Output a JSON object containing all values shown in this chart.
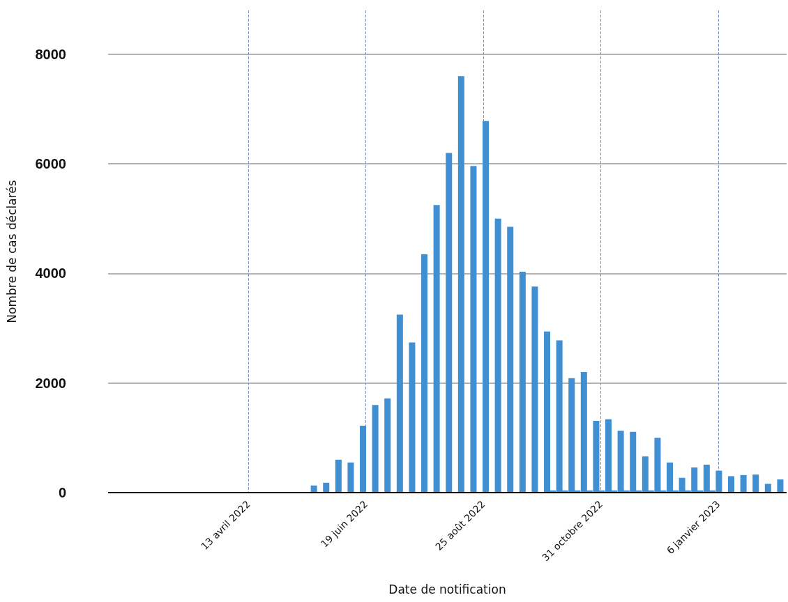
{
  "chart_data": {
    "type": "bar",
    "xlabel": "Date de notification",
    "ylabel": "Nombre de cas déclarés",
    "x": [
      "2022-05-22",
      "2022-05-29",
      "2022-06-05",
      "2022-06-12",
      "2022-06-19",
      "2022-06-26",
      "2022-07-03",
      "2022-07-10",
      "2022-07-17",
      "2022-07-24",
      "2022-07-31",
      "2022-08-07",
      "2022-08-14",
      "2022-08-21",
      "2022-08-28",
      "2022-09-04",
      "2022-09-11",
      "2022-09-18",
      "2022-09-25",
      "2022-10-02",
      "2022-10-09",
      "2022-10-16",
      "2022-10-23",
      "2022-10-30",
      "2022-11-06",
      "2022-11-13",
      "2022-11-20",
      "2022-11-27",
      "2022-12-04",
      "2022-12-11",
      "2022-12-18",
      "2022-12-25",
      "2023-01-01",
      "2023-01-08",
      "2023-01-15",
      "2023-01-22",
      "2023-01-29",
      "2023-02-05",
      "2023-02-12"
    ],
    "series": [
      {
        "color": "#3f8fd2",
        "values": [
          130,
          180,
          600,
          550,
          1220,
          1600,
          1720,
          3250,
          2740,
          4350,
          5250,
          6200,
          7600,
          5960,
          6780,
          5000,
          4850,
          4030,
          3760,
          2940,
          2780,
          2090,
          2200,
          1310,
          1340,
          1130,
          1110,
          660,
          1000,
          550,
          270,
          460,
          510,
          400,
          300,
          320,
          330,
          160,
          240
        ]
      },
      {
        "color": "#3f8fd2",
        "values": [
          null,
          null,
          null,
          null,
          null,
          null,
          null,
          null,
          null,
          null,
          null,
          null,
          null,
          null,
          null,
          null,
          null,
          null,
          null,
          40,
          40,
          40,
          40,
          40,
          40,
          40,
          40,
          40,
          40,
          40,
          40,
          40,
          40,
          null,
          null,
          null,
          null,
          null,
          null
        ]
      }
    ],
    "xlim": [
      "2022-01-23",
      "2023-02-14"
    ],
    "xticks": [
      {
        "value": "2022-04-13",
        "label": "13 avril 2022"
      },
      {
        "value": "2022-06-19",
        "label": "19 juin 2022"
      },
      {
        "value": "2022-08-25",
        "label": "25 août 2022"
      },
      {
        "value": "2022-10-31",
        "label": "31 octobre 2022"
      },
      {
        "value": "2023-01-06",
        "label": "6 janvier 2023"
      }
    ],
    "ylim": [
      0,
      8800
    ],
    "yticks": [
      0,
      2000,
      4000,
      6000,
      8000
    ],
    "grid": true
  }
}
